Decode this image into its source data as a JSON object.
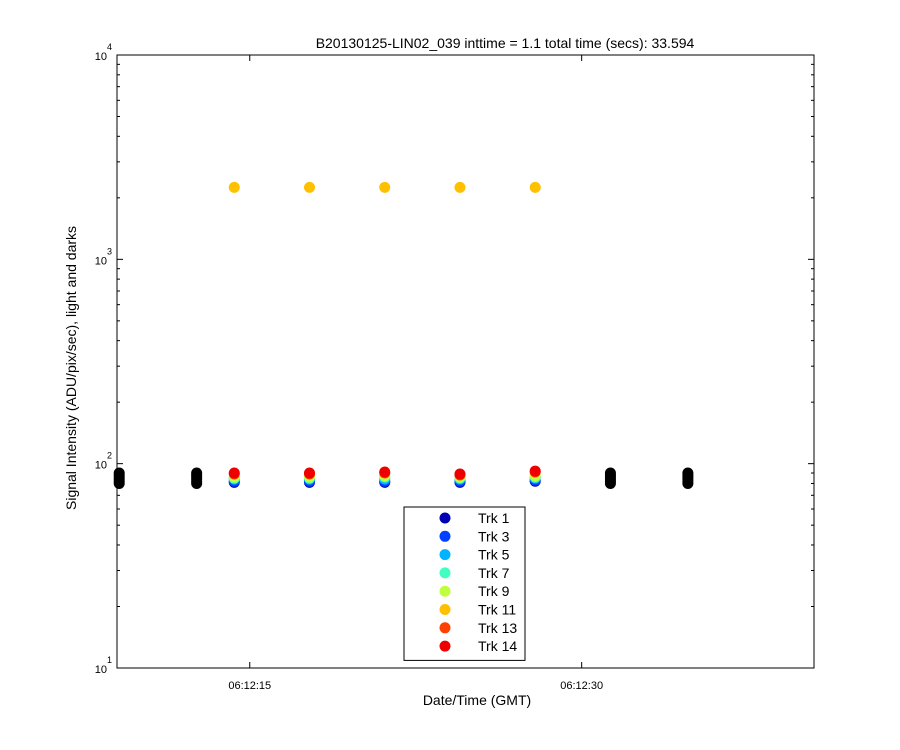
{
  "chart_data": {
    "type": "scatter",
    "title": "B20130125-LIN02_039 inttime = 1.1 total time (secs): 33.594",
    "xlabel": "Date/Time (GMT)",
    "ylabel": "Signal Intensity (ADU/pix/sec), light and darks",
    "yscale": "log",
    "ylim": [
      10,
      10000
    ],
    "xlim_seconds_after_06_12_00": [
      9,
      40.5
    ],
    "x_tick_labels": [
      "06:12:15",
      "06:12:30"
    ],
    "y_ticks": [
      {
        "value": 10,
        "base": "10",
        "exp": "1"
      },
      {
        "value": 100,
        "base": "10",
        "exp": "2"
      },
      {
        "value": 1000,
        "base": "10",
        "exp": "3"
      },
      {
        "value": 10000,
        "base": "10",
        "exp": "4"
      }
    ],
    "legend_position": "bottom-center",
    "grid": false,
    "light_x_seconds": [
      14.3,
      17.7,
      21.1,
      24.5,
      27.9
    ],
    "dark_x_seconds": [
      9.1,
      12.6,
      31.3,
      34.8
    ],
    "series": [
      {
        "name": "Trk 1",
        "color": "#0000b4",
        "values": [
          81,
          81,
          81,
          81,
          82
        ]
      },
      {
        "name": "Trk 3",
        "color": "#0040ff",
        "values": [
          82,
          82,
          82,
          82,
          83
        ]
      },
      {
        "name": "Trk 5",
        "color": "#00b4ff",
        "values": [
          84,
          84,
          84,
          84,
          85
        ]
      },
      {
        "name": "Trk 7",
        "color": "#40ffc0",
        "values": [
          85,
          85,
          86,
          85,
          86
        ]
      },
      {
        "name": "Trk 9",
        "color": "#c0ff40",
        "values": [
          86,
          86,
          87,
          86,
          87
        ]
      },
      {
        "name": "Trk 11",
        "color": "#ffc000",
        "values": [
          2250,
          2250,
          2250,
          2250,
          2250
        ]
      },
      {
        "name": "Trk 13",
        "color": "#ff4000",
        "values": [
          89,
          89,
          90,
          88,
          91
        ]
      },
      {
        "name": "Trk 14",
        "color": "#ee0000",
        "values": [
          90,
          90,
          91,
          89,
          92
        ]
      }
    ],
    "darks": {
      "color": "#000000",
      "values": [
        80,
        82,
        84,
        86,
        88,
        90
      ]
    }
  }
}
